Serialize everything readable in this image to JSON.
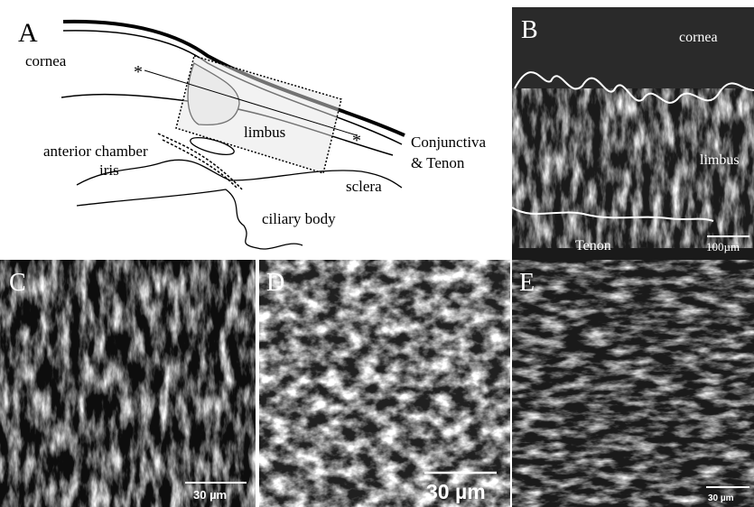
{
  "panel_a": {
    "label": "A",
    "cornea": "cornea",
    "limbus": "limbus",
    "anterior_chamber": "anterior chamber",
    "conjunctiva": "Conjunctiva",
    "tenon": "& Tenon",
    "sclera": "sclera",
    "iris": "iris",
    "ciliary_body": "ciliary body",
    "asterisks": [
      "*",
      "*"
    ]
  },
  "panel_b": {
    "label": "B",
    "cornea": "cornea",
    "limbus": "limbus",
    "tenon": "Tenon",
    "scale_bar": "100µm"
  },
  "panel_c": {
    "label": "C",
    "scale_bar": "30 µm"
  },
  "panel_d": {
    "label": "D",
    "scale_bar": "30 µm"
  },
  "panel_e": {
    "label": "E",
    "scale_bar": "30 µm"
  }
}
